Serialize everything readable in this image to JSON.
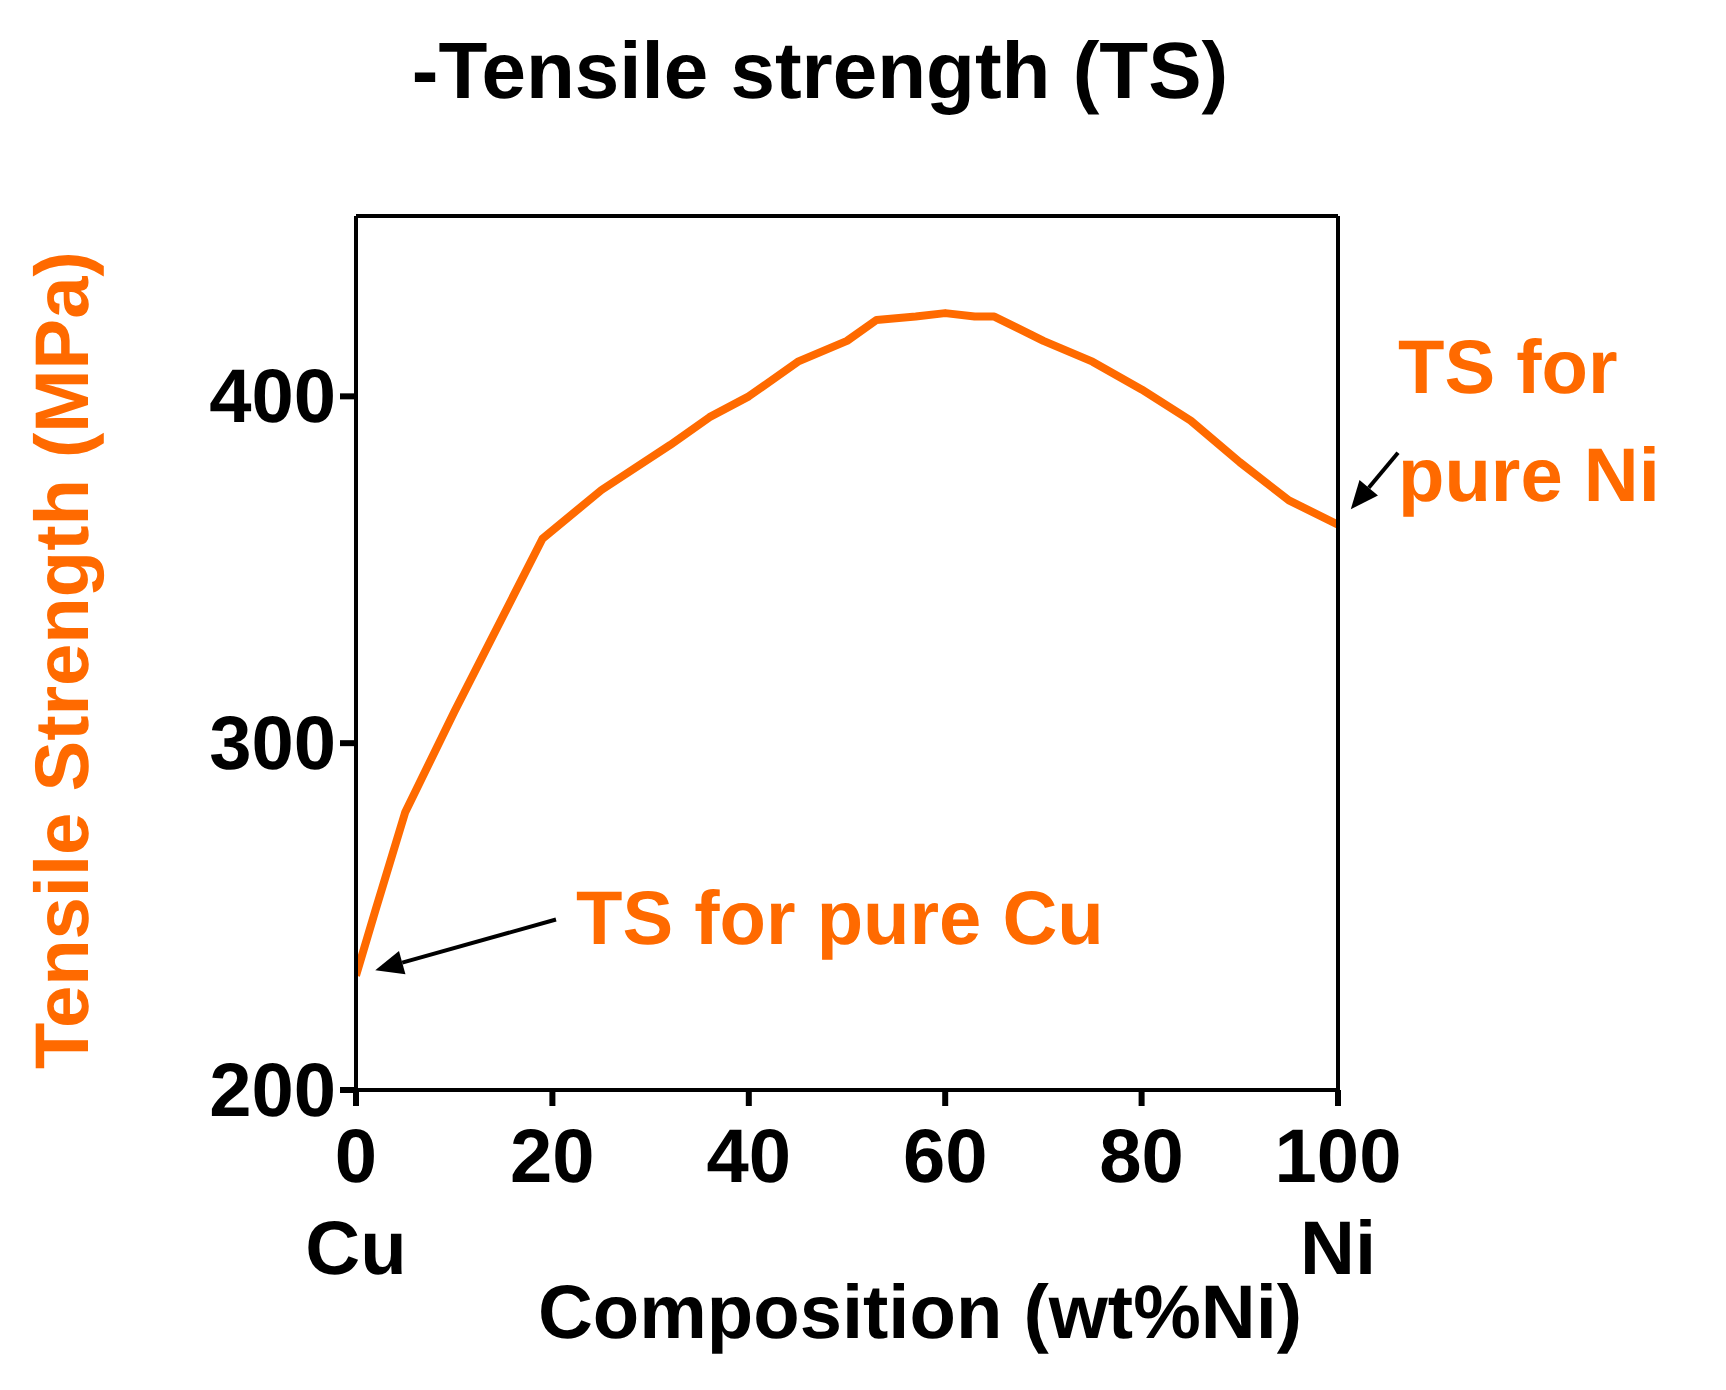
{
  "chart_data": {
    "type": "line",
    "title": "-Tensile strength (TS)",
    "xlabel": "Composition (wt%Ni)",
    "ylabel": "Tensile Strength (MPa)",
    "x": [
      0,
      2,
      5,
      10,
      19,
      25,
      32,
      36,
      40,
      45,
      50,
      53,
      57,
      60,
      63,
      65,
      70,
      75,
      80,
      85,
      90,
      95,
      100
    ],
    "series": [
      {
        "color": "#ff6a00",
        "values": [
          233,
          252,
          280,
          309,
          359,
          373,
          386,
          394,
          400,
          410,
          416,
          422,
          423,
          424,
          423,
          423,
          416,
          410,
          402,
          393,
          381,
          370,
          363
        ]
      }
    ],
    "xlim": [
      0,
      100
    ],
    "ylim": [
      200,
      452
    ],
    "xticks": [
      {
        "value": 0,
        "label": "0\nCu"
      },
      20,
      40,
      60,
      80,
      {
        "value": 100,
        "label": "100\nNi"
      }
    ],
    "yticks": [
      200,
      300,
      400
    ],
    "annotations": [
      {
        "text": "TS for pure Cu",
        "x": 0,
        "y": 233
      },
      {
        "text": "TS for pure Ni",
        "x": 100,
        "y": 363
      }
    ],
    "marker": "none",
    "line_style": "solid"
  }
}
